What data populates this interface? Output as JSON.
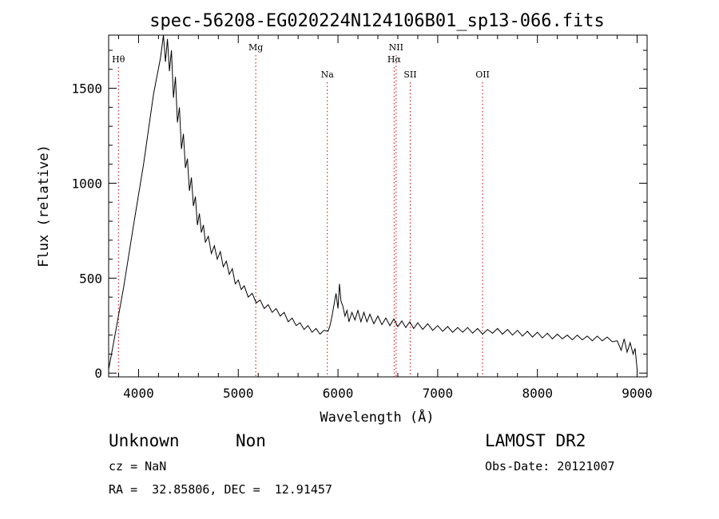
{
  "chart_data": {
    "type": "line",
    "title": "spec-56208-EG020224N124106B01_sp13-066.fits",
    "xlabel": "Wavelength (Å)",
    "ylabel": "Flux (relative)",
    "xlim": [
      3700,
      9100
    ],
    "ylim": [
      -20,
      1780
    ],
    "x_ticks": [
      4000,
      5000,
      6000,
      7000,
      8000,
      9000
    ],
    "y_ticks": [
      0,
      500,
      1000,
      1500
    ],
    "grid": false,
    "line_color": "#000000",
    "marker_color": "#cc0000",
    "spectral_lines": [
      {
        "label": "Hθ",
        "wavelength": 3798,
        "tier": 1
      },
      {
        "label": "Mg",
        "wavelength": 5175,
        "tier": 0
      },
      {
        "label": "Na",
        "wavelength": 5893,
        "tier": 2
      },
      {
        "label": "NII",
        "wavelength": 6583,
        "tier": 0
      },
      {
        "label": "Hα",
        "wavelength": 6563,
        "tier": 1
      },
      {
        "label": "SII",
        "wavelength": 6724,
        "tier": 2
      },
      {
        "label": "OII",
        "wavelength": 7450,
        "tier": 2
      }
    ],
    "series": [
      {
        "points": [
          [
            3700,
            20
          ],
          [
            3750,
            160
          ],
          [
            3850,
            450
          ],
          [
            3950,
            780
          ],
          [
            4050,
            1100
          ],
          [
            4150,
            1470
          ],
          [
            4220,
            1660
          ],
          [
            4250,
            1780
          ],
          [
            4270,
            1640
          ],
          [
            4290,
            1760
          ],
          [
            4310,
            1590
          ],
          [
            4330,
            1700
          ],
          [
            4350,
            1450
          ],
          [
            4370,
            1560
          ],
          [
            4390,
            1320
          ],
          [
            4410,
            1400
          ],
          [
            4430,
            1180
          ],
          [
            4450,
            1260
          ],
          [
            4470,
            1080
          ],
          [
            4490,
            1130
          ],
          [
            4510,
            960
          ],
          [
            4530,
            1030
          ],
          [
            4550,
            880
          ],
          [
            4570,
            930
          ],
          [
            4590,
            780
          ],
          [
            4610,
            840
          ],
          [
            4630,
            740
          ],
          [
            4650,
            780
          ],
          [
            4670,
            690
          ],
          [
            4700,
            720
          ],
          [
            4730,
            630
          ],
          [
            4760,
            670
          ],
          [
            4790,
            600
          ],
          [
            4820,
            640
          ],
          [
            4850,
            560
          ],
          [
            4880,
            590
          ],
          [
            4910,
            520
          ],
          [
            4940,
            550
          ],
          [
            4970,
            470
          ],
          [
            5000,
            490
          ],
          [
            5030,
            440
          ],
          [
            5060,
            460
          ],
          [
            5100,
            400
          ],
          [
            5140,
            420
          ],
          [
            5180,
            370
          ],
          [
            5220,
            385
          ],
          [
            5260,
            340
          ],
          [
            5300,
            360
          ],
          [
            5340,
            320
          ],
          [
            5380,
            340
          ],
          [
            5420,
            300
          ],
          [
            5460,
            320
          ],
          [
            5500,
            270
          ],
          [
            5540,
            290
          ],
          [
            5580,
            250
          ],
          [
            5620,
            265
          ],
          [
            5660,
            230
          ],
          [
            5700,
            250
          ],
          [
            5740,
            215
          ],
          [
            5780,
            235
          ],
          [
            5820,
            205
          ],
          [
            5860,
            225
          ],
          [
            5900,
            220
          ],
          [
            5920,
            250
          ],
          [
            5940,
            300
          ],
          [
            5960,
            360
          ],
          [
            5980,
            420
          ],
          [
            6000,
            340
          ],
          [
            6015,
            470
          ],
          [
            6030,
            380
          ],
          [
            6050,
            350
          ],
          [
            6070,
            300
          ],
          [
            6090,
            330
          ],
          [
            6110,
            270
          ],
          [
            6140,
            320
          ],
          [
            6170,
            280
          ],
          [
            6200,
            330
          ],
          [
            6230,
            270
          ],
          [
            6260,
            320
          ],
          [
            6290,
            270
          ],
          [
            6320,
            310
          ],
          [
            6360,
            260
          ],
          [
            6400,
            300
          ],
          [
            6440,
            255
          ],
          [
            6480,
            290
          ],
          [
            6520,
            250
          ],
          [
            6560,
            285
          ],
          [
            6600,
            245
          ],
          [
            6640,
            275
          ],
          [
            6680,
            240
          ],
          [
            6720,
            270
          ],
          [
            6760,
            235
          ],
          [
            6800,
            265
          ],
          [
            6850,
            230
          ],
          [
            6900,
            260
          ],
          [
            6950,
            225
          ],
          [
            7000,
            250
          ],
          [
            7050,
            220
          ],
          [
            7100,
            245
          ],
          [
            7150,
            215
          ],
          [
            7200,
            240
          ],
          [
            7250,
            215
          ],
          [
            7300,
            240
          ],
          [
            7350,
            210
          ],
          [
            7400,
            235
          ],
          [
            7450,
            205
          ],
          [
            7500,
            230
          ],
          [
            7550,
            210
          ],
          [
            7600,
            235
          ],
          [
            7650,
            205
          ],
          [
            7700,
            230
          ],
          [
            7750,
            200
          ],
          [
            7800,
            225
          ],
          [
            7850,
            195
          ],
          [
            7900,
            220
          ],
          [
            7950,
            190
          ],
          [
            8000,
            215
          ],
          [
            8050,
            185
          ],
          [
            8100,
            210
          ],
          [
            8150,
            180
          ],
          [
            8200,
            205
          ],
          [
            8250,
            180
          ],
          [
            8300,
            200
          ],
          [
            8350,
            175
          ],
          [
            8400,
            200
          ],
          [
            8450,
            175
          ],
          [
            8500,
            195
          ],
          [
            8550,
            170
          ],
          [
            8600,
            195
          ],
          [
            8650,
            170
          ],
          [
            8700,
            190
          ],
          [
            8750,
            165
          ],
          [
            8800,
            170
          ],
          [
            8840,
            120
          ],
          [
            8870,
            180
          ],
          [
            8900,
            110
          ],
          [
            8930,
            160
          ],
          [
            8960,
            100
          ],
          [
            8980,
            130
          ],
          [
            9000,
            20
          ]
        ]
      }
    ]
  },
  "info": {
    "object_class": "Unknown",
    "subclass": "Non",
    "survey": "LAMOST DR2",
    "cz": "cz = NaN",
    "obs_date": "Obs-Date: 20121007",
    "coords": "RA =  32.85806, DEC =  12.91457"
  }
}
